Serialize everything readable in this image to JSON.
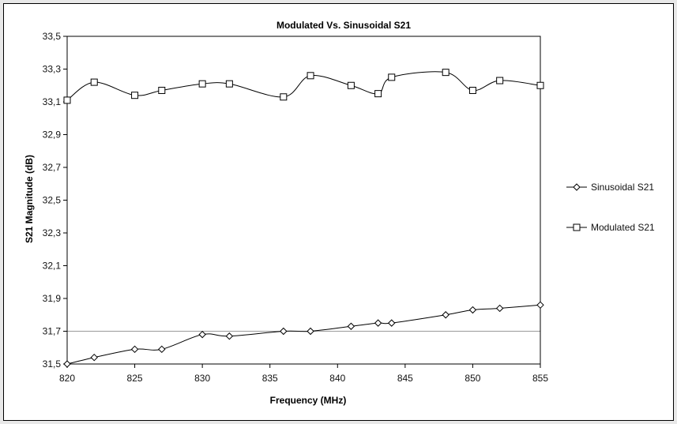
{
  "chart_data": {
    "type": "line",
    "title": "Modulated Vs. Sinusoidal S21",
    "xlabel": "Frequency (MHz)",
    "ylabel": "S21 Magnitude (dB)",
    "xlim": [
      820,
      855
    ],
    "ylim": [
      31.5,
      33.5
    ],
    "x_ticks": [
      "820",
      "825",
      "830",
      "835",
      "840",
      "845",
      "850",
      "855"
    ],
    "y_ticks": [
      "31,5",
      "31,7",
      "31,9",
      "32,1",
      "32,3",
      "32,5",
      "32,7",
      "32,9",
      "33,1",
      "33,3",
      "33,5"
    ],
    "reference_line_y": 31.7,
    "legend_position": "right",
    "series": [
      {
        "name": "Sinusoidal S21",
        "marker": "diamond",
        "x": [
          820,
          822,
          825,
          827,
          830,
          832,
          836,
          838,
          841,
          843,
          844,
          848,
          850,
          852,
          855
        ],
        "y": [
          31.5,
          31.54,
          31.59,
          31.59,
          31.68,
          31.67,
          31.7,
          31.7,
          31.73,
          31.75,
          31.75,
          31.8,
          31.83,
          31.84,
          31.86
        ]
      },
      {
        "name": "Modulated S21",
        "marker": "square",
        "x": [
          820,
          822,
          825,
          827,
          830,
          832,
          836,
          838,
          841,
          843,
          844,
          848,
          850,
          852,
          855
        ],
        "y": [
          33.11,
          33.22,
          33.14,
          33.17,
          33.21,
          33.21,
          33.13,
          33.26,
          33.2,
          33.15,
          33.25,
          33.28,
          33.17,
          33.23,
          33.2
        ]
      }
    ],
    "colors": {
      "line": "#000000",
      "gridline": "#999999",
      "background": "#ffffff",
      "outer": "#e8e8e8"
    }
  }
}
